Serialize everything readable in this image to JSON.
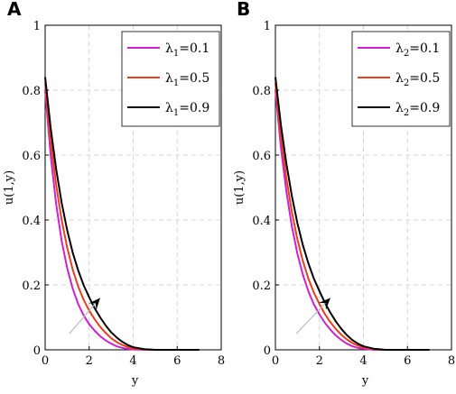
{
  "chart_data": [
    {
      "type": "line",
      "panel_label": "A",
      "xlabel": "y",
      "ylabel": "u(1,y)",
      "xlim": [
        0,
        8
      ],
      "ylim": [
        0,
        1
      ],
      "xticks": [
        "0",
        "2",
        "4",
        "6",
        "8"
      ],
      "yticks": [
        "0",
        "0.2",
        "0.4",
        "0.6",
        "0.8",
        "1"
      ],
      "grid": true,
      "legend_position": "top-right",
      "legend_symbol": "λ",
      "legend_subscript": "1",
      "series": [
        {
          "name": "=0.1",
          "color": "#cc22cc",
          "x": [
            0,
            0.25,
            0.5,
            0.75,
            1,
            1.25,
            1.5,
            1.75,
            2,
            2.25,
            2.5,
            2.75,
            3,
            3.25,
            3.5,
            3.75,
            4,
            4.5,
            5,
            6,
            7
          ],
          "y": [
            0.8,
            0.6,
            0.449,
            0.336,
            0.252,
            0.189,
            0.141,
            0.106,
            0.079,
            0.059,
            0.042,
            0.029,
            0.019,
            0.011,
            0.006,
            0.003,
            0.001,
            0.0,
            0.0,
            0.0,
            0.0
          ]
        },
        {
          "name": "=0.5",
          "color": "#e8401c",
          "x": [
            0,
            0.25,
            0.5,
            0.75,
            1,
            1.25,
            1.5,
            1.75,
            2,
            2.25,
            2.5,
            2.75,
            3,
            3.25,
            3.5,
            3.75,
            4,
            4.5,
            5,
            6,
            7
          ],
          "y": [
            0.82,
            0.645,
            0.508,
            0.4,
            0.315,
            0.248,
            0.195,
            0.154,
            0.121,
            0.094,
            0.071,
            0.052,
            0.036,
            0.024,
            0.015,
            0.009,
            0.004,
            0.001,
            0.0,
            0.0,
            0.0
          ]
        },
        {
          "name": "=0.9",
          "color": "#000000",
          "x": [
            0,
            0.25,
            0.5,
            0.75,
            1,
            1.25,
            1.5,
            1.75,
            2,
            2.25,
            2.5,
            2.75,
            3,
            3.25,
            3.5,
            3.75,
            4,
            4.5,
            5,
            6,
            7
          ],
          "y": [
            0.84,
            0.684,
            0.557,
            0.453,
            0.369,
            0.3,
            0.245,
            0.199,
            0.162,
            0.128,
            0.1,
            0.075,
            0.054,
            0.038,
            0.025,
            0.015,
            0.008,
            0.002,
            0.0,
            0.0,
            0.0
          ]
        }
      ],
      "arrow": {
        "from": [
          1.1,
          0.05
        ],
        "to": [
          2.5,
          0.16
        ]
      }
    },
    {
      "type": "line",
      "panel_label": "B",
      "xlabel": "y",
      "ylabel": "u(1,y)",
      "xlim": [
        0,
        8
      ],
      "ylim": [
        0,
        1
      ],
      "xticks": [
        "0",
        "2",
        "4",
        "6",
        "8"
      ],
      "yticks": [
        "0",
        "0.2",
        "0.4",
        "0.6",
        "0.8",
        "1"
      ],
      "grid": true,
      "legend_position": "top-right",
      "legend_symbol": "λ",
      "legend_subscript": "2",
      "series": [
        {
          "name": "=0.1",
          "color": "#cc22cc",
          "x": [
            0,
            0.25,
            0.5,
            0.75,
            1,
            1.25,
            1.5,
            1.75,
            2,
            2.25,
            2.5,
            2.75,
            3,
            3.25,
            3.5,
            3.75,
            4,
            4.5,
            5,
            6,
            7
          ],
          "y": [
            0.8,
            0.624,
            0.487,
            0.38,
            0.296,
            0.231,
            0.18,
            0.14,
            0.109,
            0.083,
            0.062,
            0.044,
            0.03,
            0.019,
            0.011,
            0.006,
            0.003,
            0.0,
            0.0,
            0.0,
            0.0
          ]
        },
        {
          "name": "=0.5",
          "color": "#e8401c",
          "x": [
            0,
            0.25,
            0.5,
            0.75,
            1,
            1.25,
            1.5,
            1.75,
            2,
            2.25,
            2.5,
            2.75,
            3,
            3.25,
            3.5,
            3.75,
            4,
            4.5,
            5,
            6,
            7
          ],
          "y": [
            0.82,
            0.658,
            0.528,
            0.424,
            0.34,
            0.273,
            0.219,
            0.176,
            0.141,
            0.11,
            0.085,
            0.064,
            0.046,
            0.032,
            0.021,
            0.013,
            0.007,
            0.002,
            0.0,
            0.0,
            0.0
          ]
        },
        {
          "name": "=0.9",
          "color": "#000000",
          "x": [
            0,
            0.25,
            0.5,
            0.75,
            1,
            1.25,
            1.5,
            1.75,
            2,
            2.25,
            2.5,
            2.75,
            3,
            3.25,
            3.5,
            3.75,
            4,
            4.5,
            5,
            6,
            7
          ],
          "y": [
            0.84,
            0.693,
            0.573,
            0.473,
            0.39,
            0.322,
            0.266,
            0.219,
            0.181,
            0.145,
            0.114,
            0.087,
            0.064,
            0.045,
            0.03,
            0.019,
            0.011,
            0.003,
            0.0,
            0.0,
            0.0
          ]
        }
      ],
      "arrow": {
        "from": [
          0.95,
          0.05
        ],
        "to": [
          2.5,
          0.16
        ]
      }
    }
  ]
}
